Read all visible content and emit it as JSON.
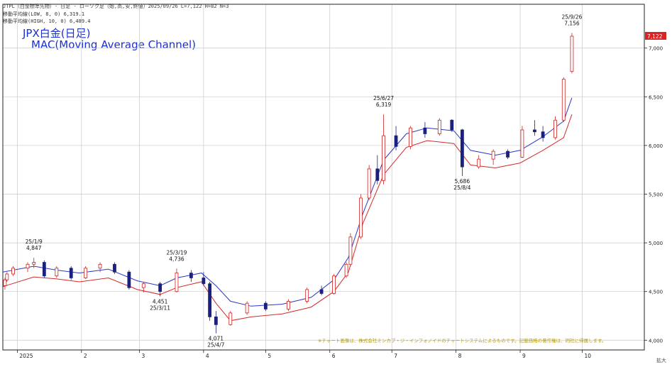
{
  "header": {
    "instrument_line": "JTPL（白金標準先物）- 日足 - ローソク足（始,高,安,終値）2025/09/26 L=7,122 H=82 N=3",
    "ma_low_line": "移動平均線(LOW, 8, 0) 6,319.1",
    "ma_high_line": "移動平均線(HIGH, 10, 0) 6,489.4",
    "title": "JPX白金(日足)",
    "subtitle": "MAC(Moving Average Channel)"
  },
  "footer": {
    "disclaimer": "※チャート画像は、株式会社ミンカブ・ジ・インフォノイドのチャートシステムによるものです。記載価格の著作権は、同社に帰属します。",
    "corner_label": "拡大"
  },
  "chart_data": {
    "type": "candlestick",
    "y_axis": {
      "min": 3900,
      "max": 7450,
      "ticks": [
        4000,
        4500,
        5000,
        5500,
        6000,
        6500,
        7000
      ],
      "tick_labels": [
        "4,000",
        "4,500",
        "5,000",
        "5,500",
        "6,000",
        "6,500",
        "7,000"
      ]
    },
    "x_axis": {
      "first_date": "2024-12-25",
      "last_date": "2025-10-31",
      "month_marks": [
        {
          "date": "2025-01-01",
          "label": "2025"
        },
        {
          "date": "2025-02-01",
          "label": "2"
        },
        {
          "date": "2025-03-01",
          "label": "3"
        },
        {
          "date": "2025-04-01",
          "label": "4"
        },
        {
          "date": "2025-05-01",
          "label": "5"
        },
        {
          "date": "2025-06-01",
          "label": "6"
        },
        {
          "date": "2025-07-01",
          "label": "7"
        },
        {
          "date": "2025-08-01",
          "label": "8"
        },
        {
          "date": "2025-09-01",
          "label": "9"
        },
        {
          "date": "2025-10-01",
          "label": "10"
        }
      ]
    },
    "last_price_tag": {
      "value": 7122,
      "label": "7,122",
      "color": "#dd2222"
    },
    "annotations": [
      {
        "date": "2025-01-09",
        "value": 4847,
        "line1": "25/1/9",
        "line2": "4,847",
        "position": "above"
      },
      {
        "date": "2025-03-11",
        "value": 4451,
        "line1": "4,451",
        "line2": "25/3/11",
        "position": "below"
      },
      {
        "date": "2025-03-19",
        "value": 4736,
        "line1": "25/3/19",
        "line2": "4,736",
        "position": "above"
      },
      {
        "date": "2025-04-07",
        "value": 4071,
        "line1": "4,071",
        "line2": "25/4/7",
        "position": "below"
      },
      {
        "date": "2025-06-27",
        "value": 6319,
        "line1": "25/6/27",
        "line2": "6,319",
        "position": "above"
      },
      {
        "date": "2025-08-04",
        "value": 5686,
        "line1": "5,686",
        "line2": "25/8/4",
        "position": "below"
      },
      {
        "date": "2025-09-26",
        "value": 7156,
        "line1": "25/9/26",
        "line2": "7,156",
        "position": "above"
      }
    ],
    "series": [
      {
        "name": "ローソク足",
        "kind": "candles"
      },
      {
        "name": "移動平均線(HIGH, 10, 0)",
        "kind": "line",
        "color": "#2b38c8",
        "points": [
          [
            "2024-12-25",
            4700
          ],
          [
            "2025-01-09",
            4760
          ],
          [
            "2025-01-20",
            4720
          ],
          [
            "2025-01-31",
            4690
          ],
          [
            "2025-02-14",
            4730
          ],
          [
            "2025-02-28",
            4610
          ],
          [
            "2025-03-11",
            4560
          ],
          [
            "2025-03-19",
            4640
          ],
          [
            "2025-03-31",
            4690
          ],
          [
            "2025-04-07",
            4560
          ],
          [
            "2025-04-14",
            4400
          ],
          [
            "2025-04-24",
            4350
          ],
          [
            "2025-05-09",
            4370
          ],
          [
            "2025-05-23",
            4440
          ],
          [
            "2025-06-03",
            4620
          ],
          [
            "2025-06-10",
            4850
          ],
          [
            "2025-06-17",
            5300
          ],
          [
            "2025-06-27",
            5850
          ],
          [
            "2025-07-08",
            6120
          ],
          [
            "2025-07-18",
            6180
          ],
          [
            "2025-07-31",
            6150
          ],
          [
            "2025-08-08",
            5950
          ],
          [
            "2025-08-20",
            5900
          ],
          [
            "2025-09-01",
            5950
          ],
          [
            "2025-09-12",
            6090
          ],
          [
            "2025-09-22",
            6250
          ],
          [
            "2025-09-26",
            6489
          ]
        ]
      },
      {
        "name": "移動平均線(LOW, 8, 0)",
        "kind": "line",
        "color": "#d42a2a",
        "points": [
          [
            "2024-12-25",
            4550
          ],
          [
            "2025-01-09",
            4650
          ],
          [
            "2025-01-20",
            4630
          ],
          [
            "2025-01-31",
            4600
          ],
          [
            "2025-02-14",
            4640
          ],
          [
            "2025-02-28",
            4520
          ],
          [
            "2025-03-11",
            4470
          ],
          [
            "2025-03-19",
            4540
          ],
          [
            "2025-03-31",
            4600
          ],
          [
            "2025-04-07",
            4380
          ],
          [
            "2025-04-14",
            4200
          ],
          [
            "2025-04-24",
            4240
          ],
          [
            "2025-05-09",
            4270
          ],
          [
            "2025-05-23",
            4340
          ],
          [
            "2025-06-03",
            4500
          ],
          [
            "2025-06-10",
            4700
          ],
          [
            "2025-06-17",
            5200
          ],
          [
            "2025-06-27",
            5700
          ],
          [
            "2025-07-08",
            5980
          ],
          [
            "2025-07-18",
            6050
          ],
          [
            "2025-07-31",
            6020
          ],
          [
            "2025-08-08",
            5800
          ],
          [
            "2025-08-20",
            5770
          ],
          [
            "2025-09-01",
            5820
          ],
          [
            "2025-09-12",
            5950
          ],
          [
            "2025-09-22",
            6080
          ],
          [
            "2025-09-26",
            6319
          ]
        ]
      }
    ],
    "candles": [
      {
        "d": "2024-12-26",
        "o": 4560,
        "h": 4640,
        "l": 4520,
        "c": 4620
      },
      {
        "d": "2024-12-27",
        "o": 4620,
        "h": 4700,
        "l": 4600,
        "c": 4680
      },
      {
        "d": "2024-12-30",
        "o": 4680,
        "h": 4760,
        "l": 4660,
        "c": 4740
      },
      {
        "d": "2025-01-06",
        "o": 4740,
        "h": 4800,
        "l": 4700,
        "c": 4780
      },
      {
        "d": "2025-01-09",
        "o": 4780,
        "h": 4847,
        "l": 4740,
        "c": 4800
      },
      {
        "d": "2025-01-14",
        "o": 4800,
        "h": 4820,
        "l": 4640,
        "c": 4660
      },
      {
        "d": "2025-01-20",
        "o": 4660,
        "h": 4760,
        "l": 4640,
        "c": 4740
      },
      {
        "d": "2025-01-27",
        "o": 4740,
        "h": 4760,
        "l": 4620,
        "c": 4640
      },
      {
        "d": "2025-02-03",
        "o": 4640,
        "h": 4760,
        "l": 4630,
        "c": 4740
      },
      {
        "d": "2025-02-10",
        "o": 4740,
        "h": 4800,
        "l": 4700,
        "c": 4780
      },
      {
        "d": "2025-02-17",
        "o": 4780,
        "h": 4800,
        "l": 4680,
        "c": 4700
      },
      {
        "d": "2025-02-24",
        "o": 4700,
        "h": 4720,
        "l": 4520,
        "c": 4540
      },
      {
        "d": "2025-03-03",
        "o": 4540,
        "h": 4600,
        "l": 4490,
        "c": 4580
      },
      {
        "d": "2025-03-11",
        "o": 4580,
        "h": 4600,
        "l": 4451,
        "c": 4500
      },
      {
        "d": "2025-03-19",
        "o": 4500,
        "h": 4736,
        "l": 4490,
        "c": 4690
      },
      {
        "d": "2025-03-26",
        "o": 4690,
        "h": 4720,
        "l": 4600,
        "c": 4640
      },
      {
        "d": "2025-04-01",
        "o": 4640,
        "h": 4700,
        "l": 4560,
        "c": 4580
      },
      {
        "d": "2025-04-04",
        "o": 4580,
        "h": 4600,
        "l": 4200,
        "c": 4240
      },
      {
        "d": "2025-04-07",
        "o": 4240,
        "h": 4300,
        "l": 4071,
        "c": 4160
      },
      {
        "d": "2025-04-14",
        "o": 4160,
        "h": 4300,
        "l": 4150,
        "c": 4280
      },
      {
        "d": "2025-04-22",
        "o": 4280,
        "h": 4400,
        "l": 4260,
        "c": 4380
      },
      {
        "d": "2025-05-01",
        "o": 4380,
        "h": 4400,
        "l": 4300,
        "c": 4320
      },
      {
        "d": "2025-05-12",
        "o": 4320,
        "h": 4420,
        "l": 4300,
        "c": 4400
      },
      {
        "d": "2025-05-21",
        "o": 4400,
        "h": 4540,
        "l": 4380,
        "c": 4520
      },
      {
        "d": "2025-05-28",
        "o": 4520,
        "h": 4560,
        "l": 4460,
        "c": 4480
      },
      {
        "d": "2025-06-03",
        "o": 4480,
        "h": 4680,
        "l": 4470,
        "c": 4660
      },
      {
        "d": "2025-06-09",
        "o": 4660,
        "h": 4800,
        "l": 4640,
        "c": 4780
      },
      {
        "d": "2025-06-11",
        "o": 4780,
        "h": 5100,
        "l": 4760,
        "c": 5060
      },
      {
        "d": "2025-06-16",
        "o": 5060,
        "h": 5500,
        "l": 5040,
        "c": 5460
      },
      {
        "d": "2025-06-20",
        "o": 5460,
        "h": 5800,
        "l": 5440,
        "c": 5760
      },
      {
        "d": "2025-06-24",
        "o": 5760,
        "h": 5900,
        "l": 5600,
        "c": 5640
      },
      {
        "d": "2025-06-27",
        "o": 5640,
        "h": 6319,
        "l": 5600,
        "c": 6100
      },
      {
        "d": "2025-07-03",
        "o": 6100,
        "h": 6200,
        "l": 5950,
        "c": 5990
      },
      {
        "d": "2025-07-10",
        "o": 5990,
        "h": 6200,
        "l": 5960,
        "c": 6180
      },
      {
        "d": "2025-07-17",
        "o": 6180,
        "h": 6240,
        "l": 6080,
        "c": 6120
      },
      {
        "d": "2025-07-24",
        "o": 6120,
        "h": 6280,
        "l": 6100,
        "c": 6260
      },
      {
        "d": "2025-07-30",
        "o": 6260,
        "h": 6270,
        "l": 6140,
        "c": 6160
      },
      {
        "d": "2025-08-04",
        "o": 6160,
        "h": 6170,
        "l": 5686,
        "c": 5780
      },
      {
        "d": "2025-08-12",
        "o": 5780,
        "h": 5900,
        "l": 5760,
        "c": 5860
      },
      {
        "d": "2025-08-19",
        "o": 5860,
        "h": 5960,
        "l": 5800,
        "c": 5940
      },
      {
        "d": "2025-08-26",
        "o": 5940,
        "h": 5960,
        "l": 5860,
        "c": 5880
      },
      {
        "d": "2025-09-02",
        "o": 5880,
        "h": 6200,
        "l": 5870,
        "c": 6160
      },
      {
        "d": "2025-09-08",
        "o": 6160,
        "h": 6260,
        "l": 6100,
        "c": 6140
      },
      {
        "d": "2025-09-12",
        "o": 6140,
        "h": 6200,
        "l": 6040,
        "c": 6080
      },
      {
        "d": "2025-09-18",
        "o": 6080,
        "h": 6300,
        "l": 6060,
        "c": 6260
      },
      {
        "d": "2025-09-22",
        "o": 6260,
        "h": 6700,
        "l": 6240,
        "c": 6680
      },
      {
        "d": "2025-09-26",
        "o": 6760,
        "h": 7156,
        "l": 6740,
        "c": 7122
      }
    ]
  }
}
